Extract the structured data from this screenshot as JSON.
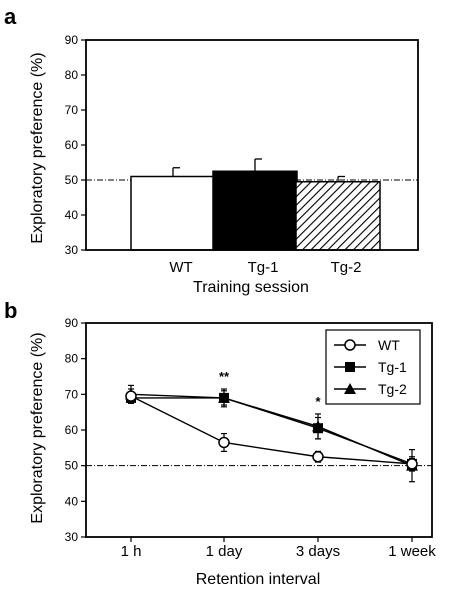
{
  "chart_data": [
    {
      "panel_label": "a",
      "type": "bar",
      "categories": [
        "WT",
        "Tg-1",
        "Tg-2"
      ],
      "values": [
        51,
        52.5,
        49.5
      ],
      "errors": [
        2.5,
        3.5,
        1.5
      ],
      "fills": [
        "white",
        "black",
        "hatched"
      ],
      "reference_line": 50,
      "xlabel": "Training session",
      "ylabel": "Exploratory preference (%)",
      "ylim": [
        30,
        90
      ],
      "yticks": [
        "30",
        "40",
        "50",
        "60",
        "70",
        "80",
        "90"
      ],
      "grid": false,
      "legend": false
    },
    {
      "panel_label": "b",
      "type": "line",
      "x": [
        "1 h",
        "1 day",
        "3 days",
        "1 week"
      ],
      "series": [
        {
          "name": "WT",
          "marker": "open-circle",
          "values": [
            69.5,
            56.5,
            52.5,
            50.5
          ],
          "errors": [
            2.0,
            2.5,
            1.5,
            1.5
          ]
        },
        {
          "name": "Tg-1",
          "marker": "filled-square",
          "values": [
            69.0,
            69.0,
            60.5,
            50.5
          ],
          "errors": [
            1.5,
            2.5,
            3.0,
            2.0
          ]
        },
        {
          "name": "Tg-2",
          "marker": "filled-triangle",
          "values": [
            70.0,
            69.0,
            61.0,
            50.0
          ],
          "errors": [
            2.5,
            2.0,
            3.5,
            4.5
          ]
        }
      ],
      "annotations": [
        {
          "x": "1 day",
          "text": "**"
        },
        {
          "x": "3 days",
          "text": "*"
        }
      ],
      "reference_line": 50,
      "xlabel": "Retention interval",
      "ylabel": "Exploratory preference (%)",
      "ylim": [
        30,
        90
      ],
      "yticks": [
        "30",
        "40",
        "50",
        "60",
        "70",
        "80",
        "90"
      ],
      "grid": false,
      "legend": "top-right"
    }
  ]
}
